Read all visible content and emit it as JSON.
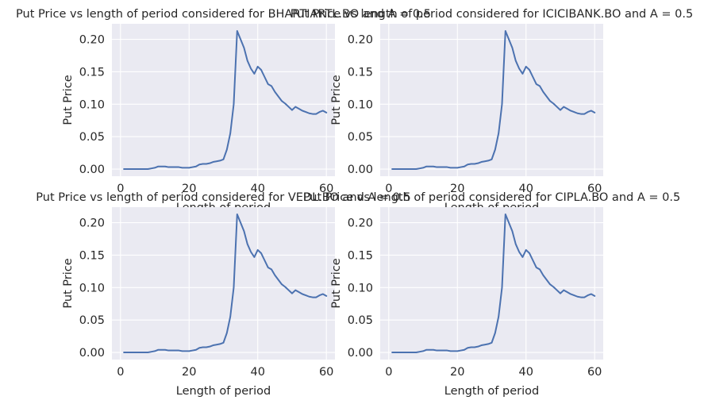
{
  "chart_data": [
    {
      "type": "line",
      "title": "Put Price vs length of period considered for BHARTIARTL.BO and A = 0.5",
      "xlabel": "Length of period",
      "ylabel": "Put Price",
      "xticks": [
        0,
        20,
        40,
        60
      ],
      "yticks": [
        "0.00",
        "0.05",
        "0.10",
        "0.15",
        "0.20"
      ],
      "xlim": [
        -2.5,
        62.5
      ],
      "ylim": [
        -0.011,
        0.224
      ],
      "grid": true,
      "color": "#4c72b0",
      "x": [
        1,
        2,
        3,
        4,
        5,
        6,
        7,
        8,
        9,
        10,
        11,
        12,
        13,
        14,
        15,
        16,
        17,
        18,
        19,
        20,
        21,
        22,
        23,
        24,
        25,
        26,
        27,
        28,
        29,
        30,
        31,
        32,
        33,
        34,
        35,
        36,
        37,
        38,
        39,
        40,
        41,
        42,
        43,
        44,
        45,
        46,
        47,
        48,
        49,
        50,
        51,
        52,
        53,
        54,
        55,
        56,
        57,
        58,
        59,
        60
      ],
      "y": [
        0.0,
        0.0,
        0.0,
        0.0,
        0.0,
        0.0,
        0.0,
        0.0,
        0.001,
        0.002,
        0.004,
        0.004,
        0.004,
        0.003,
        0.003,
        0.003,
        0.003,
        0.002,
        0.002,
        0.002,
        0.003,
        0.004,
        0.007,
        0.008,
        0.008,
        0.009,
        0.011,
        0.012,
        0.013,
        0.015,
        0.03,
        0.055,
        0.1,
        0.213,
        0.2,
        0.187,
        0.167,
        0.155,
        0.147,
        0.158,
        0.153,
        0.142,
        0.131,
        0.128,
        0.119,
        0.112,
        0.105,
        0.101,
        0.096,
        0.091,
        0.096,
        0.093,
        0.09,
        0.088,
        0.086,
        0.085,
        0.085,
        0.088,
        0.09,
        0.087
      ]
    },
    {
      "type": "line",
      "title": "Put Price vs length of period considered for ICICIBANK.BO and A = 0.5",
      "xlabel": "Length of period",
      "ylabel": "Put Price",
      "xticks": [
        0,
        20,
        40,
        60
      ],
      "yticks": [
        "0.00",
        "0.05",
        "0.10",
        "0.15",
        "0.20"
      ],
      "xlim": [
        -2.5,
        62.5
      ],
      "ylim": [
        -0.011,
        0.224
      ],
      "grid": true,
      "color": "#4c72b0",
      "x": [
        1,
        2,
        3,
        4,
        5,
        6,
        7,
        8,
        9,
        10,
        11,
        12,
        13,
        14,
        15,
        16,
        17,
        18,
        19,
        20,
        21,
        22,
        23,
        24,
        25,
        26,
        27,
        28,
        29,
        30,
        31,
        32,
        33,
        34,
        35,
        36,
        37,
        38,
        39,
        40,
        41,
        42,
        43,
        44,
        45,
        46,
        47,
        48,
        49,
        50,
        51,
        52,
        53,
        54,
        55,
        56,
        57,
        58,
        59,
        60
      ],
      "y": [
        0.0,
        0.0,
        0.0,
        0.0,
        0.0,
        0.0,
        0.0,
        0.0,
        0.001,
        0.002,
        0.004,
        0.004,
        0.004,
        0.003,
        0.003,
        0.003,
        0.003,
        0.002,
        0.002,
        0.002,
        0.003,
        0.004,
        0.007,
        0.008,
        0.008,
        0.009,
        0.011,
        0.012,
        0.013,
        0.015,
        0.03,
        0.055,
        0.1,
        0.213,
        0.2,
        0.187,
        0.167,
        0.155,
        0.147,
        0.158,
        0.153,
        0.142,
        0.131,
        0.128,
        0.119,
        0.112,
        0.105,
        0.101,
        0.096,
        0.091,
        0.096,
        0.093,
        0.09,
        0.088,
        0.086,
        0.085,
        0.085,
        0.088,
        0.09,
        0.087
      ]
    },
    {
      "type": "line",
      "title": "Put Price vs length of period considered for VEDL.BO and A = 0.5",
      "xlabel": "Length of period",
      "ylabel": "Put Price",
      "xticks": [
        0,
        20,
        40,
        60
      ],
      "yticks": [
        "0.00",
        "0.05",
        "0.10",
        "0.15",
        "0.20"
      ],
      "xlim": [
        -2.5,
        62.5
      ],
      "ylim": [
        -0.011,
        0.224
      ],
      "grid": true,
      "color": "#4c72b0",
      "x": [
        1,
        2,
        3,
        4,
        5,
        6,
        7,
        8,
        9,
        10,
        11,
        12,
        13,
        14,
        15,
        16,
        17,
        18,
        19,
        20,
        21,
        22,
        23,
        24,
        25,
        26,
        27,
        28,
        29,
        30,
        31,
        32,
        33,
        34,
        35,
        36,
        37,
        38,
        39,
        40,
        41,
        42,
        43,
        44,
        45,
        46,
        47,
        48,
        49,
        50,
        51,
        52,
        53,
        54,
        55,
        56,
        57,
        58,
        59,
        60
      ],
      "y": [
        0.0,
        0.0,
        0.0,
        0.0,
        0.0,
        0.0,
        0.0,
        0.0,
        0.001,
        0.002,
        0.004,
        0.004,
        0.004,
        0.003,
        0.003,
        0.003,
        0.003,
        0.002,
        0.002,
        0.002,
        0.003,
        0.004,
        0.007,
        0.008,
        0.008,
        0.009,
        0.011,
        0.012,
        0.013,
        0.015,
        0.03,
        0.055,
        0.1,
        0.213,
        0.2,
        0.187,
        0.167,
        0.155,
        0.147,
        0.158,
        0.153,
        0.142,
        0.131,
        0.128,
        0.119,
        0.112,
        0.105,
        0.101,
        0.096,
        0.091,
        0.096,
        0.093,
        0.09,
        0.088,
        0.086,
        0.085,
        0.085,
        0.088,
        0.09,
        0.087
      ]
    },
    {
      "type": "line",
      "title": "Put Price vs length of period considered for CIPLA.BO and A = 0.5",
      "xlabel": "Length of period",
      "ylabel": "Put Price",
      "xticks": [
        0,
        20,
        40,
        60
      ],
      "yticks": [
        "0.00",
        "0.05",
        "0.10",
        "0.15",
        "0.20"
      ],
      "xlim": [
        -2.5,
        62.5
      ],
      "ylim": [
        -0.011,
        0.224
      ],
      "grid": true,
      "color": "#4c72b0",
      "x": [
        1,
        2,
        3,
        4,
        5,
        6,
        7,
        8,
        9,
        10,
        11,
        12,
        13,
        14,
        15,
        16,
        17,
        18,
        19,
        20,
        21,
        22,
        23,
        24,
        25,
        26,
        27,
        28,
        29,
        30,
        31,
        32,
        33,
        34,
        35,
        36,
        37,
        38,
        39,
        40,
        41,
        42,
        43,
        44,
        45,
        46,
        47,
        48,
        49,
        50,
        51,
        52,
        53,
        54,
        55,
        56,
        57,
        58,
        59,
        60
      ],
      "y": [
        0.0,
        0.0,
        0.0,
        0.0,
        0.0,
        0.0,
        0.0,
        0.0,
        0.001,
        0.002,
        0.004,
        0.004,
        0.004,
        0.003,
        0.003,
        0.003,
        0.003,
        0.002,
        0.002,
        0.002,
        0.003,
        0.004,
        0.007,
        0.008,
        0.008,
        0.009,
        0.011,
        0.012,
        0.013,
        0.015,
        0.03,
        0.055,
        0.1,
        0.213,
        0.2,
        0.187,
        0.167,
        0.155,
        0.147,
        0.158,
        0.153,
        0.142,
        0.131,
        0.128,
        0.119,
        0.112,
        0.105,
        0.101,
        0.096,
        0.091,
        0.096,
        0.093,
        0.09,
        0.088,
        0.086,
        0.085,
        0.085,
        0.088,
        0.09,
        0.087
      ]
    }
  ],
  "style": {
    "plot_bg": "#eaeaf2",
    "grid_color": "#ffffff",
    "text_color": "#262626"
  }
}
